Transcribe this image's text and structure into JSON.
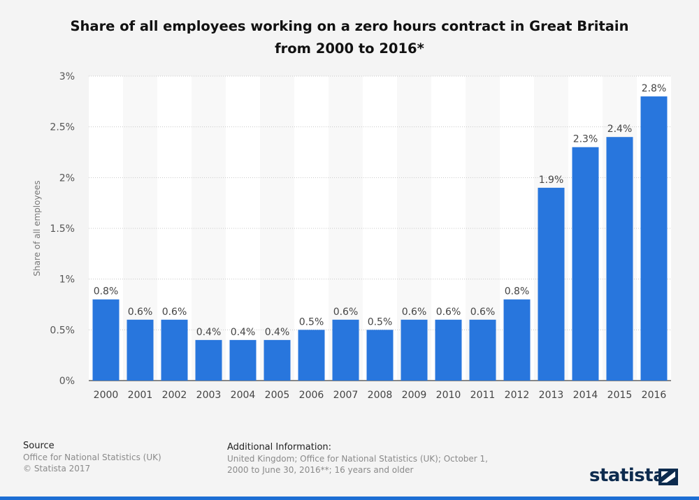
{
  "chart_data": {
    "type": "bar",
    "title": "Share of all employees working on a zero hours contract in Great Britain from 2000 to 2016*",
    "ylabel": "Share of all employees",
    "xlabel": "",
    "categories": [
      "2000",
      "2001",
      "2002",
      "2003",
      "2004",
      "2005",
      "2006",
      "2007",
      "2008",
      "2009",
      "2010",
      "2011",
      "2012",
      "2013",
      "2014",
      "2015",
      "2016"
    ],
    "values": [
      0.8,
      0.6,
      0.6,
      0.4,
      0.4,
      0.4,
      0.5,
      0.6,
      0.5,
      0.6,
      0.6,
      0.6,
      0.8,
      1.9,
      2.3,
      2.4,
      2.8
    ],
    "value_labels": [
      "0.8%",
      "0.6%",
      "0.6%",
      "0.4%",
      "0.4%",
      "0.4%",
      "0.5%",
      "0.6%",
      "0.5%",
      "0.6%",
      "0.6%",
      "0.6%",
      "0.8%",
      "1.9%",
      "2.3%",
      "2.4%",
      "2.8%"
    ],
    "ylim": [
      0,
      3
    ],
    "yticks": [
      0,
      0.5,
      1,
      1.5,
      2,
      2.5,
      3
    ],
    "ytick_labels": [
      "0%",
      "0.5%",
      "1%",
      "1.5%",
      "2%",
      "2.5%",
      "3%"
    ],
    "grid": true,
    "bar_color": "#2876dd"
  },
  "footer": {
    "source_heading": "Source",
    "source_lines": [
      "Office for National Statistics (UK)",
      "© Statista 2017"
    ],
    "additional_heading": "Additional Information:",
    "additional_text": "United Kingdom; Office for National Statistics (UK); October 1, 2000 to June 30, 2016**; 16 years and older"
  },
  "brand": {
    "name": "statista",
    "icon": "statista-logo-icon"
  }
}
